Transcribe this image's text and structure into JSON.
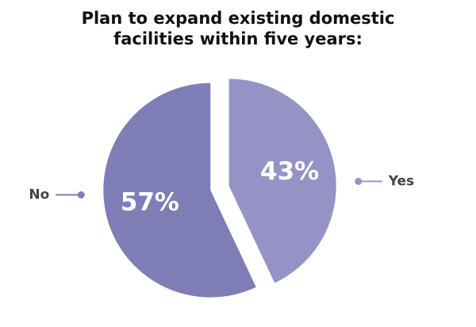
{
  "chart_data": {
    "type": "pie",
    "title": [
      "Plan to expand existing domestic",
      "facilities within five years:"
    ],
    "categories": [
      "Yes",
      "No"
    ],
    "values": [
      43,
      57
    ],
    "value_labels": [
      "43%",
      "57%"
    ],
    "colors": [
      "#9593c6",
      "#7f7db5"
    ]
  }
}
